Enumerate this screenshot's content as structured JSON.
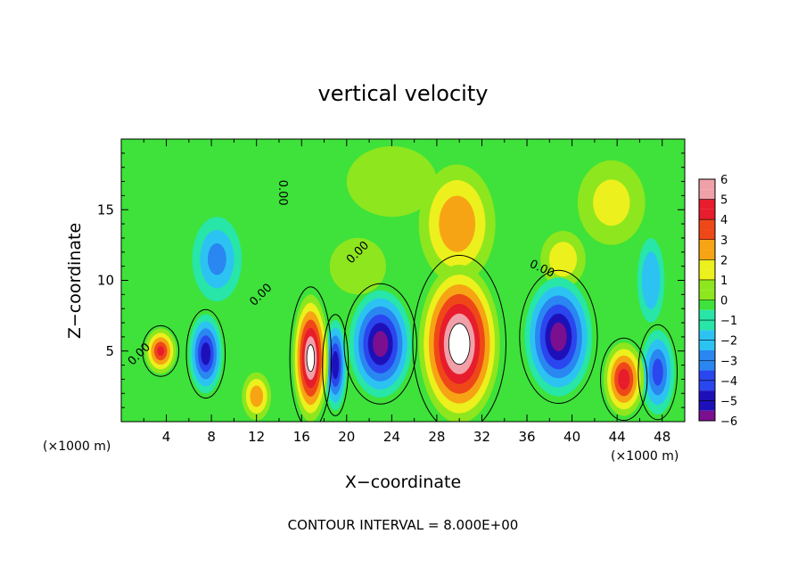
{
  "chart_data": {
    "type": "heatmap",
    "title": "vertical velocity",
    "xlabel": "X−coordinate",
    "ylabel": "Z−coordinate",
    "x_unit_left": "(×1000 m)",
    "x_unit_right": "(×1000 m)",
    "footer": "CONTOUR INTERVAL = 8.000E+00",
    "xlim": [
      0,
      50
    ],
    "ylim": [
      0,
      20
    ],
    "xticks": [
      4,
      8,
      12,
      16,
      20,
      24,
      28,
      32,
      36,
      40,
      44,
      48
    ],
    "yticks": [
      5,
      10,
      15
    ],
    "colorbar": {
      "ticks": [
        6,
        5,
        4,
        3,
        2,
        1,
        0,
        -1,
        -2,
        -3,
        -4,
        -5,
        -6
      ],
      "tick_labels": [
        "6",
        "5",
        "4",
        "3",
        "2",
        "1",
        "0",
        "−1",
        "−2",
        "−3",
        "−4",
        "−5",
        "−6"
      ],
      "range": [
        -6,
        6
      ]
    },
    "background_value": 0.3,
    "features": [
      {
        "x": 3.5,
        "z": 5.0,
        "rx": 1.4,
        "rz": 1.6,
        "value": 4.5
      },
      {
        "x": 7.5,
        "z": 4.8,
        "rx": 1.5,
        "rz": 2.8,
        "value": -5.0
      },
      {
        "x": 8.5,
        "z": 11.5,
        "rx": 2.2,
        "rz": 3.0,
        "value": -2.6
      },
      {
        "x": 12.0,
        "z": 1.8,
        "rx": 1.3,
        "rz": 1.7,
        "value": 3.0
      },
      {
        "x": 16.8,
        "z": 4.5,
        "rx": 1.6,
        "rz": 4.5,
        "value": 7.0
      },
      {
        "x": 19.0,
        "z": 4.0,
        "rx": 1.0,
        "rz": 3.2,
        "value": -5.2
      },
      {
        "x": 23.0,
        "z": 5.5,
        "rx": 2.8,
        "rz": 3.8,
        "value": -6.0
      },
      {
        "x": 30.0,
        "z": 5.5,
        "rx": 3.6,
        "rz": 5.6,
        "value": 7.5
      },
      {
        "x": 29.8,
        "z": 14.0,
        "rx": 3.4,
        "rz": 4.2,
        "value": 3.2
      },
      {
        "x": 38.8,
        "z": 6.0,
        "rx": 3.0,
        "rz": 4.2,
        "value": -6.0
      },
      {
        "x": 39.2,
        "z": 11.5,
        "rx": 2.0,
        "rz": 2.0,
        "value": 2.0
      },
      {
        "x": 44.6,
        "z": 3.0,
        "rx": 1.8,
        "rz": 2.6,
        "value": 5.0
      },
      {
        "x": 47.6,
        "z": 3.5,
        "rx": 1.5,
        "rz": 3.0,
        "value": -3.8
      },
      {
        "x": 47.0,
        "z": 10.0,
        "rx": 1.2,
        "rz": 3.0,
        "value": -2.5
      },
      {
        "x": 43.5,
        "z": 15.5,
        "rx": 3.0,
        "rz": 3.0,
        "value": 1.6
      },
      {
        "x": 24.0,
        "z": 17.0,
        "rx": 4.0,
        "rz": 2.5,
        "value": 1.0
      },
      {
        "x": 21.0,
        "z": 11.0,
        "rx": 2.5,
        "rz": 2.0,
        "value": 0.6
      }
    ],
    "contour_labels": [
      {
        "text": "0.00",
        "x": 14.0,
        "z": 16.2,
        "angle": 90
      },
      {
        "text": "0.00",
        "x": 21.2,
        "z": 11.8,
        "angle": -45
      },
      {
        "text": "0.00",
        "x": 12.6,
        "z": 8.8,
        "angle": -45
      },
      {
        "text": "0.00",
        "x": 1.8,
        "z": 4.6,
        "angle": -45
      },
      {
        "text": "0.00",
        "x": 37.2,
        "z": 10.6,
        "angle": 25
      }
    ]
  }
}
